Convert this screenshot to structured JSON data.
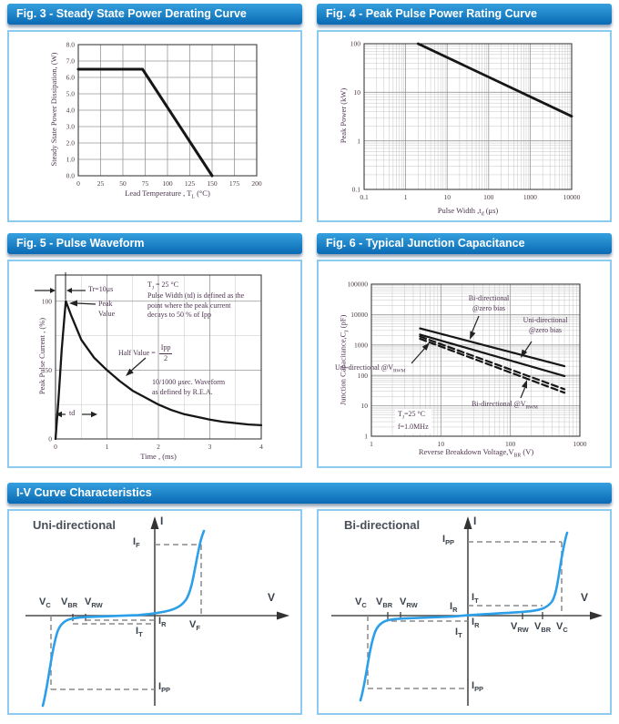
{
  "headers": {
    "fig3": "Fig. 3 - Steady State Power Derating Curve",
    "fig4": "Fig. 4 - Peak Pulse Power Rating Curve",
    "fig5": "Fig. 5 - Pulse Waveform",
    "fig6": "Fig. 6 - Typical Junction Capacitance",
    "iv": "I-V Curve Characteristics"
  },
  "colors": {
    "header_blue_top": "#35a0de",
    "header_blue_bottom": "#0a6ab4",
    "panel_border": "#8ccaf0",
    "curve_black": "#161616",
    "iv_curve_blue": "#2d9fe8",
    "dash_gray": "#8a8a8a",
    "figure_text": "#4e3450"
  },
  "fig3": {
    "ylabel": "Steady State Power Dissipation, (W)",
    "xlabel_parts": [
      {
        "t": "Lead Temperature , T"
      },
      {
        "t": "L",
        "sub": true
      },
      {
        "t": " (°C)"
      }
    ]
  },
  "fig4": {
    "ylabel": "Peak Power  (kW)",
    "xlabel_parts": [
      {
        "t": "Pulse Width ,t"
      },
      {
        "t": "d",
        "sub": true
      },
      {
        "t": " (μs)"
      }
    ]
  },
  "fig5": {
    "ylabel": "Peak Pulse Current , (%)",
    "xlabel": "Time , (ms)",
    "tr_label": "Tr=10μs",
    "peak_line1": "Peak",
    "peak_line2": "Value",
    "cond_parts": [
      {
        "t": "T"
      },
      {
        "t": "J",
        "sub": true
      },
      {
        "t": " = 25 °C"
      }
    ],
    "note_lines": [
      "Pulse Width (td) is defined as the",
      "point where the peak current",
      "decays to 50 % of Ipp"
    ],
    "half_label": "Half Value = ",
    "half_num": "Ipp",
    "half_den": "2",
    "rea_line1": "10/1000 μsec. Waveform",
    "rea_line2": "as defined by R.E.A.",
    "td_label": "td"
  },
  "fig6": {
    "ylabel_parts": [
      {
        "t": "Junction Capacitance,C"
      },
      {
        "t": "J",
        "sub": true
      },
      {
        "t": " (pF)"
      }
    ],
    "xlabel_parts": [
      {
        "t": "Reverse Breakdown Voltage,V"
      },
      {
        "t": "BR",
        "sub": true
      },
      {
        "t": " (V)"
      }
    ],
    "ann_bi_zero_1": "Bi-directional",
    "ann_bi_zero_2": "@zero bias",
    "ann_uni_zero_1": "Uni-directional",
    "ann_uni_zero_2": "@zero bias",
    "ann_uni_vrwm_parts": [
      {
        "t": "Uni-directional @V"
      },
      {
        "t": "RWM",
        "sub": true
      }
    ],
    "ann_bi_vrwm_parts": [
      {
        "t": "Bi-directional @V"
      },
      {
        "t": "RWM",
        "sub": true
      }
    ],
    "cond1_parts": [
      {
        "t": "T"
      },
      {
        "t": "J",
        "sub": true
      },
      {
        "t": "=25 °C"
      }
    ],
    "cond2": "f=1.0MHz"
  },
  "iv": {
    "uni_title": "Uni-directional",
    "bi_title": "Bi-directional",
    "axis_i": "I",
    "axis_v": "V",
    "labels": {
      "i_f": [
        {
          "t": "I"
        },
        {
          "t": "F",
          "sub": true
        }
      ],
      "v_f": [
        {
          "t": "V"
        },
        {
          "t": "F",
          "sub": true
        }
      ],
      "i_r": [
        {
          "t": "I"
        },
        {
          "t": "R",
          "sub": true
        }
      ],
      "i_t": [
        {
          "t": "I"
        },
        {
          "t": "T",
          "sub": true
        }
      ],
      "i_pp": [
        {
          "t": "I"
        },
        {
          "t": "PP",
          "sub": true
        }
      ],
      "v_c": [
        {
          "t": "V"
        },
        {
          "t": "C",
          "sub": true
        }
      ],
      "v_br": [
        {
          "t": "V"
        },
        {
          "t": "BR",
          "sub": true
        }
      ],
      "v_rw": [
        {
          "t": "V"
        },
        {
          "t": "RW",
          "sub": true
        }
      ]
    }
  },
  "chart_data": [
    {
      "id": "fig3",
      "type": "line",
      "title": "Steady State Power Derating Curve",
      "xlabel": "Lead Temperature, TL (°C)",
      "ylabel": "Steady State Power Dissipation, (W)",
      "xlim": [
        0,
        200
      ],
      "ylim": [
        0,
        8
      ],
      "x_ticks": [
        0,
        25,
        50,
        75,
        100,
        125,
        150,
        175,
        200
      ],
      "x_tick_labels": [
        "0",
        "25",
        "50",
        "75",
        "100",
        "125",
        "150",
        "175",
        "200"
      ],
      "y_ticks": [
        0,
        1,
        2,
        3,
        4,
        5,
        6,
        7,
        8
      ],
      "y_tick_labels": [
        "0.0",
        "1.0",
        "2.0",
        "3.0",
        "4.0",
        "5.0",
        "6.0",
        "7.0",
        "8.0"
      ],
      "grid": true,
      "legend": false,
      "series": [
        {
          "name": "steady-state-power-derating",
          "style": "solid",
          "points": [
            [
              0,
              6.5
            ],
            [
              72,
              6.5
            ],
            [
              150,
              0
            ]
          ]
        }
      ]
    },
    {
      "id": "fig4",
      "type": "line",
      "xscale": "log",
      "yscale": "log",
      "title": "Peak Pulse Power Rating Curve",
      "xlabel": "Pulse Width, td (μs)",
      "ylabel": "Peak Power (kW)",
      "xlim": [
        0.1,
        10000
      ],
      "ylim": [
        0.1,
        100
      ],
      "x_ticks": [
        0.1,
        1,
        10,
        100,
        1000,
        10000
      ],
      "x_tick_labels": [
        "0.1",
        "1",
        "10",
        "100",
        "1000",
        "10000"
      ],
      "y_ticks": [
        0.1,
        1,
        10,
        100
      ],
      "y_tick_labels": [
        "0.1",
        "1",
        "10",
        "100"
      ],
      "grid": true,
      "legend": false,
      "series": [
        {
          "name": "peak-pulse-power",
          "style": "solid",
          "points": [
            [
              2,
              100
            ],
            [
              10000,
              3.2
            ]
          ]
        }
      ]
    },
    {
      "id": "fig5",
      "type": "line",
      "title": "Pulse Waveform",
      "xlabel": "Time, (ms)",
      "ylabel": "Peak Pulse Current, (%)",
      "xlim": [
        0,
        4
      ],
      "ylim": [
        0,
        119
      ],
      "x_ticks": [
        0,
        1,
        2,
        3,
        4
      ],
      "x_tick_labels": [
        "0",
        "1",
        "2",
        "3",
        "4"
      ],
      "y_ticks": [
        0,
        50,
        100
      ],
      "y_tick_labels": [
        "0",
        "50",
        "100"
      ],
      "x_grid_step": 0.5,
      "y_grid_step": 25,
      "grid": true,
      "legend": false,
      "annotations": [
        "Tr=10μs",
        "Peak Value",
        "TJ = 25 °C",
        "Pulse Width (td) is defined as the point where the peak current decays to 50 % of Ipp",
        "Half Value = Ipp/2",
        "10/1000 μsec. Waveform as defined by R.E.A.",
        "td"
      ],
      "series": [
        {
          "name": "pulse-waveform",
          "style": "solid",
          "points": [
            [
              0,
              0
            ],
            [
              0.06,
              30
            ],
            [
              0.12,
              65
            ],
            [
              0.18,
              92
            ],
            [
              0.2,
              100
            ],
            [
              0.3,
              90
            ],
            [
              0.5,
              72
            ],
            [
              0.75,
              59
            ],
            [
              1,
              50
            ],
            [
              1.25,
              42
            ],
            [
              1.5,
              35
            ],
            [
              1.75,
              30
            ],
            [
              2,
              25
            ],
            [
              2.25,
              21
            ],
            [
              2.5,
              18
            ],
            [
              2.75,
              16
            ],
            [
              3,
              14
            ],
            [
              3.25,
              12.5
            ],
            [
              3.5,
              11.5
            ],
            [
              3.75,
              10.5
            ],
            [
              4,
              10
            ]
          ]
        }
      ]
    },
    {
      "id": "fig6",
      "type": "line",
      "xscale": "log",
      "yscale": "log",
      "title": "Typical Junction Capacitance",
      "xlabel": "Reverse Breakdown Voltage, VBR (V)",
      "ylabel": "Junction Capacitance, CJ (pF)",
      "xlim": [
        1,
        1000
      ],
      "ylim": [
        1,
        100000
      ],
      "x_ticks": [
        1,
        10,
        100,
        1000
      ],
      "x_tick_labels": [
        "1",
        "10",
        "100",
        "1000"
      ],
      "y_ticks": [
        1,
        10,
        100,
        1000,
        10000,
        100000
      ],
      "y_tick_labels": [
        "1",
        "10",
        "100",
        "1000",
        "10000",
        "100000"
      ],
      "conditions": "TJ=25 °C, f=1.0MHz",
      "grid": true,
      "legend": false,
      "series": [
        {
          "name": "bi-directional @zero bias",
          "style": "solid",
          "points": [
            [
              5,
              3500
            ],
            [
              600,
              200
            ]
          ]
        },
        {
          "name": "uni-directional @zero bias",
          "style": "solid",
          "points": [
            [
              5,
              2200
            ],
            [
              600,
              95
            ]
          ]
        },
        {
          "name": "uni-directional @VRWM",
          "style": "dashed",
          "points": [
            [
              5,
              1900
            ],
            [
              600,
              35
            ]
          ]
        },
        {
          "name": "bi-directional @VRWM",
          "style": "dashed",
          "points": [
            [
              5,
              1600
            ],
            [
              600,
              27
            ]
          ]
        }
      ]
    }
  ]
}
